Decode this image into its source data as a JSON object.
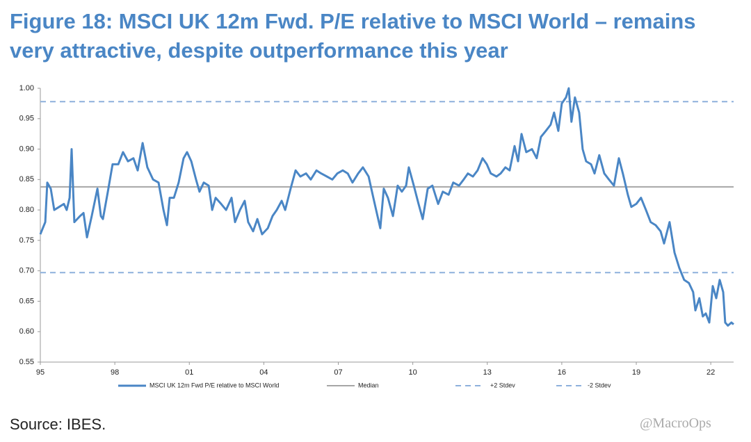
{
  "chart_data": {
    "type": "line",
    "title": "Figure 18: MSCI UK 12m Fwd. P/E relative to MSCI World – remains very attractive, despite outperformance this year",
    "source": "Source: IBES.",
    "credit": "@MacroOps",
    "xlim": [
      1995,
      2022.92
    ],
    "ylim": [
      0.55,
      1.0
    ],
    "xticks": [
      {
        "value": 1995,
        "label": "95"
      },
      {
        "value": 1998,
        "label": "98"
      },
      {
        "value": 2001,
        "label": "01"
      },
      {
        "value": 2004,
        "label": "04"
      },
      {
        "value": 2007,
        "label": "07"
      },
      {
        "value": 2010,
        "label": "10"
      },
      {
        "value": 2013,
        "label": "13"
      },
      {
        "value": 2016,
        "label": "16"
      },
      {
        "value": 2019,
        "label": "19"
      },
      {
        "value": 2022,
        "label": "22"
      }
    ],
    "yticks": [
      {
        "value": 0.55,
        "label": "0.55"
      },
      {
        "value": 0.6,
        "label": "0.60"
      },
      {
        "value": 0.65,
        "label": "0.65"
      },
      {
        "value": 0.7,
        "label": "0.70"
      },
      {
        "value": 0.75,
        "label": "0.75"
      },
      {
        "value": 0.8,
        "label": "0.80"
      },
      {
        "value": 0.85,
        "label": "0.85"
      },
      {
        "value": 0.9,
        "label": "0.90"
      },
      {
        "value": 0.95,
        "label": "0.95"
      },
      {
        "value": 1.0,
        "label": "1.00"
      }
    ],
    "series": [
      {
        "name": "MSCI UK 12m Fwd P/E relative to MSCI World",
        "color": "#4a86c5",
        "x": [
          1995.0,
          1995.2,
          1995.28,
          1995.42,
          1995.56,
          1995.76,
          1995.95,
          1996.06,
          1996.18,
          1996.26,
          1996.37,
          1996.6,
          1996.74,
          1996.88,
          1997.07,
          1997.3,
          1997.44,
          1997.52,
          1997.72,
          1997.91,
          1998.14,
          1998.33,
          1998.53,
          1998.75,
          1998.92,
          1999.12,
          1999.31,
          1999.54,
          1999.76,
          1999.96,
          2000.1,
          2000.21,
          2000.38,
          2000.57,
          2000.77,
          2000.91,
          2001.08,
          2001.27,
          2001.41,
          2001.58,
          2001.78,
          2001.92,
          2002.06,
          2002.28,
          2002.48,
          2002.7,
          2002.84,
          2003.04,
          2003.23,
          2003.37,
          2003.57,
          2003.74,
          2003.93,
          2004.16,
          2004.35,
          2004.52,
          2004.72,
          2004.86,
          2005.08,
          2005.28,
          2005.47,
          2005.7,
          2005.89,
          2006.12,
          2006.31,
          2006.54,
          2006.76,
          2006.96,
          2007.18,
          2007.38,
          2007.57,
          2007.8,
          2007.99,
          2008.22,
          2008.41,
          2008.58,
          2008.69,
          2008.83,
          2009.0,
          2009.2,
          2009.39,
          2009.56,
          2009.73,
          2009.84,
          2010.04,
          2010.23,
          2010.4,
          2010.6,
          2010.79,
          2011.02,
          2011.21,
          2011.44,
          2011.63,
          2011.86,
          2012.05,
          2012.22,
          2012.42,
          2012.61,
          2012.81,
          2012.98,
          2013.14,
          2013.37,
          2013.54,
          2013.73,
          2013.9,
          2014.1,
          2014.24,
          2014.38,
          2014.57,
          2014.8,
          2014.99,
          2015.16,
          2015.36,
          2015.55,
          2015.69,
          2015.86,
          2016.0,
          2016.17,
          2016.28,
          2016.39,
          2016.53,
          2016.7,
          2016.84,
          2016.98,
          2017.18,
          2017.32,
          2017.51,
          2017.71,
          2017.9,
          2018.1,
          2018.3,
          2018.46,
          2018.66,
          2018.8,
          2019.0,
          2019.19,
          2019.39,
          2019.58,
          2019.78,
          2019.98,
          2020.12,
          2020.34,
          2020.54,
          2020.73,
          2020.93,
          2021.12,
          2021.29,
          2021.38,
          2021.54,
          2021.68,
          2021.8,
          2021.94,
          2022.08,
          2022.22,
          2022.36,
          2022.5,
          2022.58,
          2022.69,
          2022.83,
          2022.92
        ],
        "values": [
          0.76,
          0.78,
          0.845,
          0.835,
          0.8,
          0.805,
          0.81,
          0.8,
          0.82,
          0.9,
          0.78,
          0.79,
          0.795,
          0.755,
          0.79,
          0.835,
          0.79,
          0.785,
          0.83,
          0.875,
          0.875,
          0.895,
          0.88,
          0.885,
          0.865,
          0.91,
          0.87,
          0.85,
          0.845,
          0.8,
          0.775,
          0.82,
          0.82,
          0.845,
          0.885,
          0.895,
          0.88,
          0.85,
          0.83,
          0.845,
          0.84,
          0.8,
          0.82,
          0.81,
          0.8,
          0.82,
          0.78,
          0.8,
          0.815,
          0.78,
          0.765,
          0.785,
          0.76,
          0.77,
          0.79,
          0.8,
          0.815,
          0.8,
          0.835,
          0.865,
          0.855,
          0.86,
          0.85,
          0.865,
          0.86,
          0.855,
          0.85,
          0.86,
          0.865,
          0.86,
          0.845,
          0.86,
          0.87,
          0.855,
          0.82,
          0.79,
          0.77,
          0.835,
          0.82,
          0.79,
          0.84,
          0.83,
          0.84,
          0.87,
          0.84,
          0.81,
          0.785,
          0.835,
          0.84,
          0.81,
          0.83,
          0.825,
          0.845,
          0.84,
          0.85,
          0.86,
          0.855,
          0.865,
          0.885,
          0.875,
          0.86,
          0.855,
          0.86,
          0.87,
          0.865,
          0.905,
          0.88,
          0.925,
          0.895,
          0.9,
          0.885,
          0.92,
          0.93,
          0.94,
          0.96,
          0.93,
          0.975,
          0.985,
          1.0,
          0.945,
          0.985,
          0.96,
          0.9,
          0.88,
          0.875,
          0.86,
          0.89,
          0.86,
          0.85,
          0.84,
          0.885,
          0.86,
          0.825,
          0.805,
          0.81,
          0.82,
          0.8,
          0.78,
          0.775,
          0.765,
          0.745,
          0.78,
          0.73,
          0.705,
          0.685,
          0.68,
          0.665,
          0.635,
          0.655,
          0.625,
          0.63,
          0.615,
          0.675,
          0.655,
          0.685,
          0.665,
          0.615,
          0.61,
          0.615,
          0.612
        ]
      }
    ],
    "reference_lines": [
      {
        "name": "Median",
        "value": 0.838,
        "color": "#a6a6a6",
        "dashed": false
      },
      {
        "name": "+2 Stdev",
        "value": 0.978,
        "color": "#8db0dc",
        "dashed": true
      },
      {
        "name": "-2 Stdev",
        "value": 0.697,
        "color": "#8db0dc",
        "dashed": true
      }
    ]
  }
}
